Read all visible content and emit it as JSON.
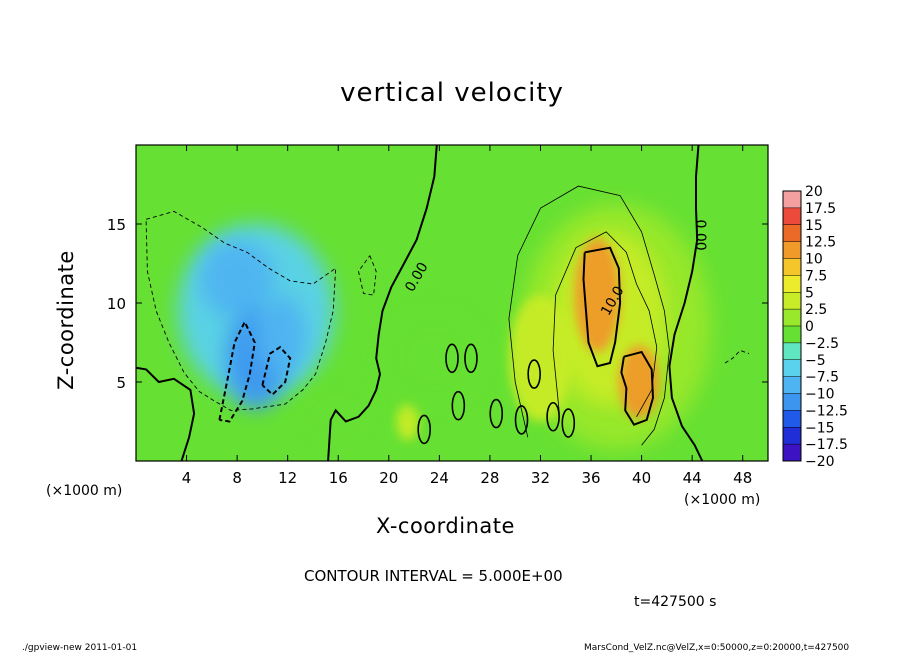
{
  "title": "vertical velocity",
  "contour_interval_text": "CONTOUR INTERVAL = 5.000E+00",
  "time_text": "t=427500 s",
  "x_unit_text": "(×1000 m)",
  "footer_left": "./gpview-new   2011-01-01",
  "footer_right": "MarsCond_VelZ.nc@VelZ,x=0:50000,z=0:20000,t=427500",
  "colors": {
    "background": "#ffffff",
    "zero_level": "#66e033",
    "negative_extreme": "#7a1fd6",
    "positive_extreme": "#f4a0a0"
  },
  "chart_data": {
    "type": "heatmap",
    "title": "vertical velocity",
    "xlabel": "X-coordinate",
    "ylabel": "Z-coordinate",
    "xlim": [
      0,
      50
    ],
    "ylim": [
      0,
      20
    ],
    "x_ticks": [
      4,
      8,
      12,
      16,
      20,
      24,
      28,
      32,
      36,
      40,
      44,
      48
    ],
    "y_ticks": [
      5,
      10,
      15
    ],
    "colorbar": {
      "levels": [
        -20,
        -17.5,
        -15,
        -12.5,
        -10,
        -7.5,
        -5,
        -2.5,
        0,
        2.5,
        5,
        7.5,
        10,
        12.5,
        15,
        17.5,
        20
      ],
      "labels": [
        "20",
        "17.5",
        "15",
        "12.5",
        "10",
        "7.5",
        "5",
        "2.5",
        "0",
        "−2.5",
        "−5",
        "−7.5",
        "−10",
        "−12.5",
        "−15",
        "−17.5",
        "−20"
      ],
      "colors": [
        "#7a1fd6",
        "#3d12c2",
        "#1f2ed6",
        "#1f5ae8",
        "#3c96f0",
        "#4fb4f2",
        "#5ad2ee",
        "#61e6c2",
        "#66e033",
        "#99e82c",
        "#c8ec28",
        "#ecec2c",
        "#f4c62a",
        "#f09a29",
        "#ec6a28",
        "#ec4a3a",
        "#f4a0a0"
      ]
    },
    "contour_labels": [
      {
        "text": "0.00",
        "x": 22.5,
        "y": 11.5
      },
      {
        "text": "0.00",
        "x": 44.3,
        "y": 14.3
      },
      {
        "text": "10.0",
        "x": 38.0,
        "y": 10.0
      }
    ],
    "features": [
      {
        "kind": "downdraft",
        "x": 8,
        "z": 11,
        "value": -7.5
      },
      {
        "kind": "downdraft",
        "x": 9.5,
        "z": 6,
        "value": -10
      },
      {
        "kind": "downdraft",
        "x": 11.5,
        "z": 8,
        "value": -7.5
      },
      {
        "kind": "updraft",
        "x": 36.5,
        "z": 10.5,
        "value": 15
      },
      {
        "kind": "updraft",
        "x": 39.8,
        "z": 5,
        "value": 13
      },
      {
        "kind": "updraft",
        "x": 21.5,
        "z": 2.5,
        "value": 7
      }
    ]
  }
}
